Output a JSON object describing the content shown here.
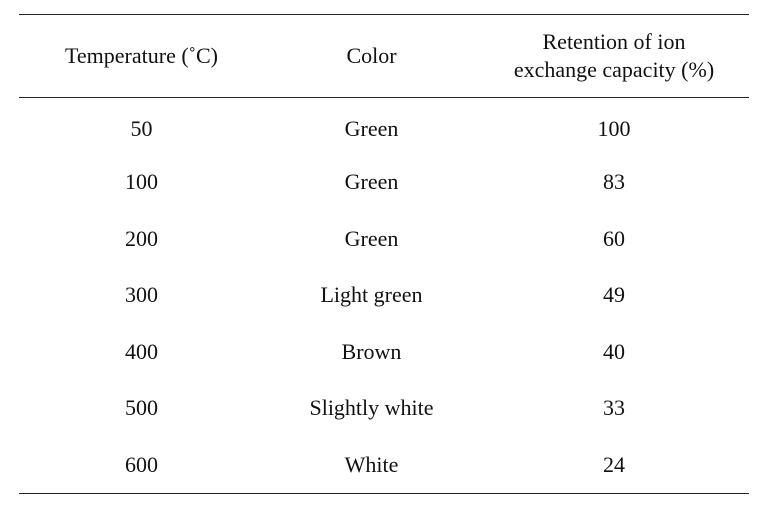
{
  "table": {
    "headers": [
      "Temperature (˚C)",
      "Color",
      "Retention of ion exchange capacity (%)"
    ],
    "header_lines": {
      "col3_line1": "Retention of ion",
      "col3_line2": "exchange capacity (%)"
    },
    "rows": [
      [
        "50",
        "Green",
        "100"
      ],
      [
        "100",
        "Green",
        "83"
      ],
      [
        "200",
        "Green",
        "60"
      ],
      [
        "300",
        "Light green",
        "49"
      ],
      [
        "400",
        "Brown",
        "40"
      ],
      [
        "500",
        "Slightly white",
        "33"
      ],
      [
        "600",
        "White",
        "24"
      ]
    ]
  }
}
